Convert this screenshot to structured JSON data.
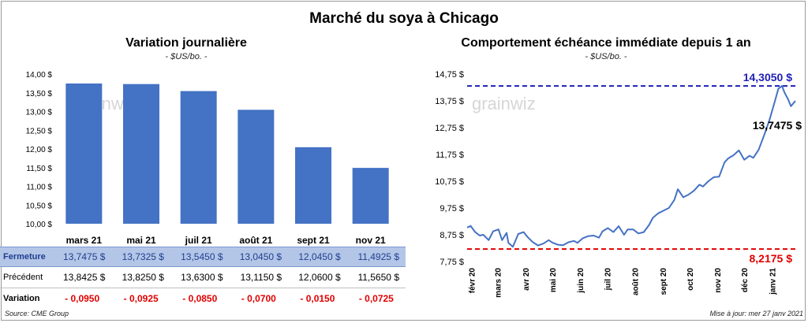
{
  "header": {
    "title": "Marché du soya à Chicago"
  },
  "watermark": "grainwiz",
  "left_panel": {
    "title": "Variation  journalière",
    "subtitle": "- $US/bo. -"
  },
  "right_panel": {
    "title": "Comportement  échéance immédiate depuis 1 an",
    "subtitle": "- $US/bo. -"
  },
  "chart_data": [
    {
      "type": "bar",
      "title": "Variation  journalière",
      "subtitle": "- $US/bo. -",
      "xlabel": "",
      "ylabel": "",
      "categories": [
        "mars 21",
        "mai 21",
        "juil 21",
        "août 21",
        "sept 21",
        "nov 21"
      ],
      "values": [
        13.7475,
        13.7325,
        13.545,
        13.045,
        12.045,
        11.4925
      ],
      "ylim": [
        10.0,
        14.0
      ],
      "yticks": [
        10.0,
        10.5,
        11.0,
        11.5,
        12.0,
        12.5,
        13.0,
        13.5,
        14.0
      ],
      "ytick_labels": [
        "10,00 $",
        "10,50 $",
        "11,00 $",
        "11,50 $",
        "12,00 $",
        "12,50 $",
        "13,00 $",
        "13,50 $",
        "14,00 $"
      ],
      "color": "#4472c4",
      "grid": false,
      "legend": "none"
    },
    {
      "type": "line",
      "title": "Comportement  échéance immédiate depuis 1 an",
      "subtitle": "- $US/bo. -",
      "xlabel": "",
      "ylabel": "",
      "x": [
        "2020-01-27",
        "2020-01-31",
        "2020-02-05",
        "2020-02-10",
        "2020-02-14",
        "2020-02-20",
        "2020-02-25",
        "2020-03-02",
        "2020-03-06",
        "2020-03-11",
        "2020-03-13",
        "2020-03-18",
        "2020-03-24",
        "2020-03-30",
        "2020-04-03",
        "2020-04-09",
        "2020-04-15",
        "2020-04-21",
        "2020-04-27",
        "2020-05-01",
        "2020-05-07",
        "2020-05-13",
        "2020-05-19",
        "2020-05-25",
        "2020-05-29",
        "2020-06-04",
        "2020-06-10",
        "2020-06-16",
        "2020-06-22",
        "2020-06-26",
        "2020-07-02",
        "2020-07-08",
        "2020-07-14",
        "2020-07-20",
        "2020-07-24",
        "2020-07-30",
        "2020-08-05",
        "2020-08-11",
        "2020-08-17",
        "2020-08-21",
        "2020-08-27",
        "2020-09-02",
        "2020-09-08",
        "2020-09-14",
        "2020-09-18",
        "2020-09-24",
        "2020-09-30",
        "2020-10-06",
        "2020-10-12",
        "2020-10-16",
        "2020-10-22",
        "2020-10-28",
        "2020-11-03",
        "2020-11-09",
        "2020-11-13",
        "2020-11-19",
        "2020-11-25",
        "2020-12-01",
        "2020-12-07",
        "2020-12-11",
        "2020-12-17",
        "2020-12-23",
        "2020-12-29",
        "2021-01-04",
        "2021-01-08",
        "2021-01-12",
        "2021-01-15",
        "2021-01-19",
        "2021-01-22",
        "2021-01-27"
      ],
      "y": [
        9.02,
        9.08,
        8.85,
        8.72,
        8.75,
        8.55,
        8.88,
        8.95,
        8.55,
        8.82,
        8.45,
        8.3,
        8.78,
        8.85,
        8.68,
        8.48,
        8.35,
        8.42,
        8.55,
        8.46,
        8.38,
        8.36,
        8.47,
        8.52,
        8.45,
        8.62,
        8.7,
        8.72,
        8.64,
        8.88,
        9.0,
        8.85,
        9.07,
        8.75,
        8.95,
        8.95,
        8.8,
        8.85,
        9.12,
        9.38,
        9.55,
        9.65,
        9.75,
        10.05,
        10.45,
        10.15,
        10.25,
        10.4,
        10.62,
        10.55,
        10.75,
        10.9,
        10.92,
        11.45,
        11.6,
        11.72,
        11.9,
        11.55,
        11.7,
        11.62,
        11.92,
        12.45,
        13.02,
        13.72,
        14.2,
        14.305,
        14.05,
        13.8,
        13.55,
        13.7475
      ],
      "ylim": [
        7.75,
        14.75
      ],
      "yticks": [
        7.75,
        8.75,
        9.75,
        10.75,
        11.75,
        12.75,
        13.75,
        14.75
      ],
      "ytick_labels": [
        "7,75 $",
        "8,75 $",
        "9,75 $",
        "10,75 $",
        "11,75 $",
        "12,75 $",
        "13,75 $",
        "14,75 $"
      ],
      "xticks": [
        "2020-02-01",
        "2020-03-01",
        "2020-04-01",
        "2020-05-01",
        "2020-06-01",
        "2020-07-01",
        "2020-08-01",
        "2020-09-01",
        "2020-10-01",
        "2020-11-01",
        "2020-12-01",
        "2021-01-01"
      ],
      "xtick_labels": [
        "févr 20",
        "mars 20",
        "avr 20",
        "mai 20",
        "juin 20",
        "juil 20",
        "août 20",
        "sept 20",
        "oct 20",
        "nov 20",
        "déc 20",
        "janv 21"
      ],
      "series_color": "#4472c4",
      "max_line": {
        "value": 14.305,
        "label": "14,3050 $",
        "color": "#1f1fb4"
      },
      "min_line": {
        "value": 8.2175,
        "label": "8,2175 $",
        "color": "#e00000"
      },
      "last_label": {
        "value": 13.7475,
        "label": "13,7475 $"
      },
      "grid": false,
      "legend": "none"
    }
  ],
  "table": {
    "rows": [
      {
        "label": "Fermeture",
        "values": [
          "13,7475",
          "13,7325",
          "13,5450",
          "13,0450",
          "12,0450",
          "11,4925"
        ],
        "unit": "$"
      },
      {
        "label": "Précédent",
        "values": [
          "13,8425",
          "13,8250",
          "13,6300",
          "13,1150",
          "12,0600",
          "11,5650"
        ],
        "unit": "$"
      },
      {
        "label": "Variation",
        "values": [
          "- 0,0950",
          "- 0,0925",
          "- 0,0850",
          "- 0,0700",
          "- 0,0150",
          "- 0,0725"
        ]
      }
    ]
  },
  "footer": {
    "source": "Source: CME Group",
    "update": "Mise à jour: mer 27 janv 2021"
  }
}
